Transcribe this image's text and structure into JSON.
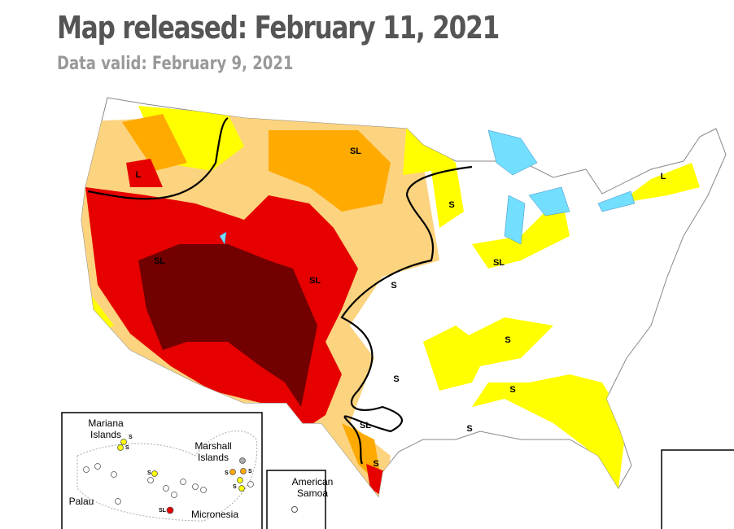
{
  "header": {
    "title": "Map released: February 11, 2021",
    "subtitle": "Data valid: February 9, 2021"
  },
  "map": {
    "impact_labels": [
      "L",
      "SL",
      "L",
      "S",
      "SL",
      "SL",
      "S",
      "SL",
      "S",
      "S",
      "S",
      "SL",
      "S",
      "S"
    ]
  },
  "insets": {
    "pacific": {
      "labels": [
        "Mariana",
        "Islands",
        "Marshall",
        "Islands",
        "Palau",
        "Micronesia"
      ],
      "impact_labels": [
        "S",
        "S",
        "S",
        "S",
        "S",
        "S",
        "SL"
      ]
    },
    "samoa": {
      "labels": [
        "American",
        "Samoa"
      ]
    }
  }
}
